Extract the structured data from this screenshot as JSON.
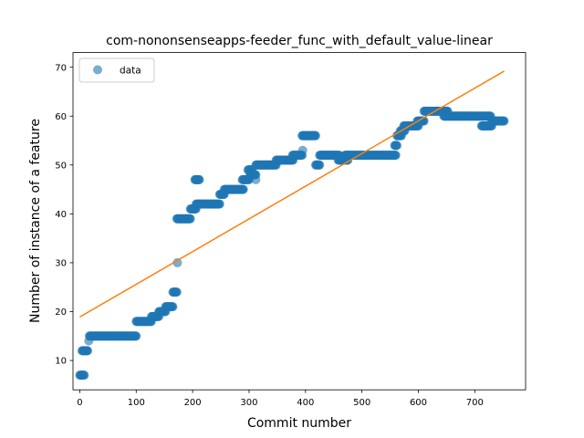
{
  "chart_data": {
    "type": "scatter",
    "title": "com-nononsenseapps-feeder_func_with_default_value-linear",
    "xlabel": "Commit number",
    "ylabel": "Number of instance of a feature",
    "xlim": [
      -12,
      790
    ],
    "ylim": [
      4,
      73
    ],
    "xticks": [
      0,
      100,
      200,
      300,
      400,
      500,
      600,
      700
    ],
    "yticks": [
      10,
      20,
      30,
      40,
      50,
      60,
      70
    ],
    "grid": false,
    "legend": {
      "position": "top-left",
      "entries": [
        "data"
      ]
    },
    "colors": {
      "data": "#1f77b4",
      "fit": "#ff7f0e"
    },
    "series": [
      {
        "name": "data",
        "kind": "scatter",
        "segments": [
          {
            "x": [
              0,
              8
            ],
            "y": 7
          },
          {
            "x": [
              4,
              14
            ],
            "y": 12
          },
          {
            "x": 16,
            "y": 14
          },
          {
            "x": [
              17,
              100
            ],
            "y": 15
          },
          {
            "x": [
              100,
              127
            ],
            "y": 18
          },
          {
            "x": [
              127,
              140
            ],
            "y": 19
          },
          {
            "x": [
              140,
              152
            ],
            "y": 20
          },
          {
            "x": [
              152,
              165
            ],
            "y": 21
          },
          {
            "x": [
              165,
              172
            ],
            "y": 24
          },
          {
            "x": 173,
            "y": 30
          },
          {
            "x": [
              172,
              196
            ],
            "y": 39
          },
          {
            "x": [
              196,
              206
            ],
            "y": 41
          },
          {
            "x": [
              204,
              212
            ],
            "y": 47
          },
          {
            "x": [
              206,
              248
            ],
            "y": 42
          },
          {
            "x": [
              248,
              256
            ],
            "y": 44
          },
          {
            "x": [
              256,
              290
            ],
            "y": 45
          },
          {
            "x": [
              288,
              300
            ],
            "y": 47
          },
          {
            "x": [
              298,
              305
            ],
            "y": 49
          },
          {
            "x": [
              302,
              312
            ],
            "y": 48
          },
          {
            "x": 312,
            "y": 47
          },
          {
            "x": [
              312,
              348
            ],
            "y": 50
          },
          {
            "x": [
              348,
              365
            ],
            "y": 51
          },
          {
            "x": [
              364,
              378
            ],
            "y": 51
          },
          {
            "x": [
              377,
              394
            ],
            "y": 52
          },
          {
            "x": 395,
            "y": 53
          },
          {
            "x": [
              394,
              418
            ],
            "y": 56
          },
          {
            "x": [
              418,
              425
            ],
            "y": 50
          },
          {
            "x": [
              425,
              460
            ],
            "y": 52
          },
          {
            "x": [
              458,
              475
            ],
            "y": 51
          },
          {
            "x": [
              470,
              560
            ],
            "y": 52
          },
          {
            "x": [
              558,
              562
            ],
            "y": 54
          },
          {
            "x": [
              562,
              570
            ],
            "y": 56
          },
          {
            "x": [
              568,
              576
            ],
            "y": 57
          },
          {
            "x": [
              574,
              600
            ],
            "y": 58
          },
          {
            "x": [
              598,
              610
            ],
            "y": 59
          },
          {
            "x": [
              610,
              648
            ],
            "y": 61
          },
          {
            "x": [
              642,
              652
            ],
            "y": 61
          },
          {
            "x": [
              645,
              728
            ],
            "y": 60
          },
          {
            "x": [
              712,
              730
            ],
            "y": 58
          },
          {
            "x": [
              730,
              752
            ],
            "y": 59
          }
        ]
      },
      {
        "name": "",
        "kind": "line",
        "x": [
          0,
          752
        ],
        "y": [
          18.9,
          69.2
        ]
      }
    ]
  }
}
